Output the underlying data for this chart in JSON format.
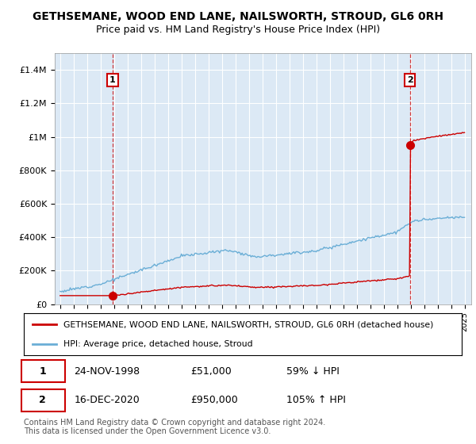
{
  "title": "GETHSEMANE, WOOD END LANE, NAILSWORTH, STROUD, GL6 0RH",
  "subtitle": "Price paid vs. HM Land Registry's House Price Index (HPI)",
  "title_fontsize": 10,
  "subtitle_fontsize": 9,
  "background_color": "#dce9f5",
  "fig_bg_color": "#ffffff",
  "hpi_color": "#6aaed6",
  "price_color": "#cc0000",
  "annotation_box_color": "#cc0000",
  "ylim": [
    0,
    1500000
  ],
  "ytick_labels": [
    "£0",
    "£200K",
    "£400K",
    "£600K",
    "£800K",
    "£1M",
    "£1.2M",
    "£1.4M"
  ],
  "ytick_values": [
    0,
    200000,
    400000,
    600000,
    800000,
    1000000,
    1200000,
    1400000
  ],
  "point1_year": 1998.9,
  "point1_value": 51000,
  "point1_label": "1",
  "point2_year": 2020.95,
  "point2_value": 950000,
  "point2_label": "2",
  "legend_entries": [
    "GETHSEMANE, WOOD END LANE, NAILSWORTH, STROUD, GL6 0RH (detached house)",
    "HPI: Average price, detached house, Stroud"
  ],
  "table_rows": [
    [
      "1",
      "24-NOV-1998",
      "£51,000",
      "59% ↓ HPI"
    ],
    [
      "2",
      "16-DEC-2020",
      "£950,000",
      "105% ↑ HPI"
    ]
  ],
  "footer_text": "Contains HM Land Registry data © Crown copyright and database right 2024.\nThis data is licensed under the Open Government Licence v3.0."
}
